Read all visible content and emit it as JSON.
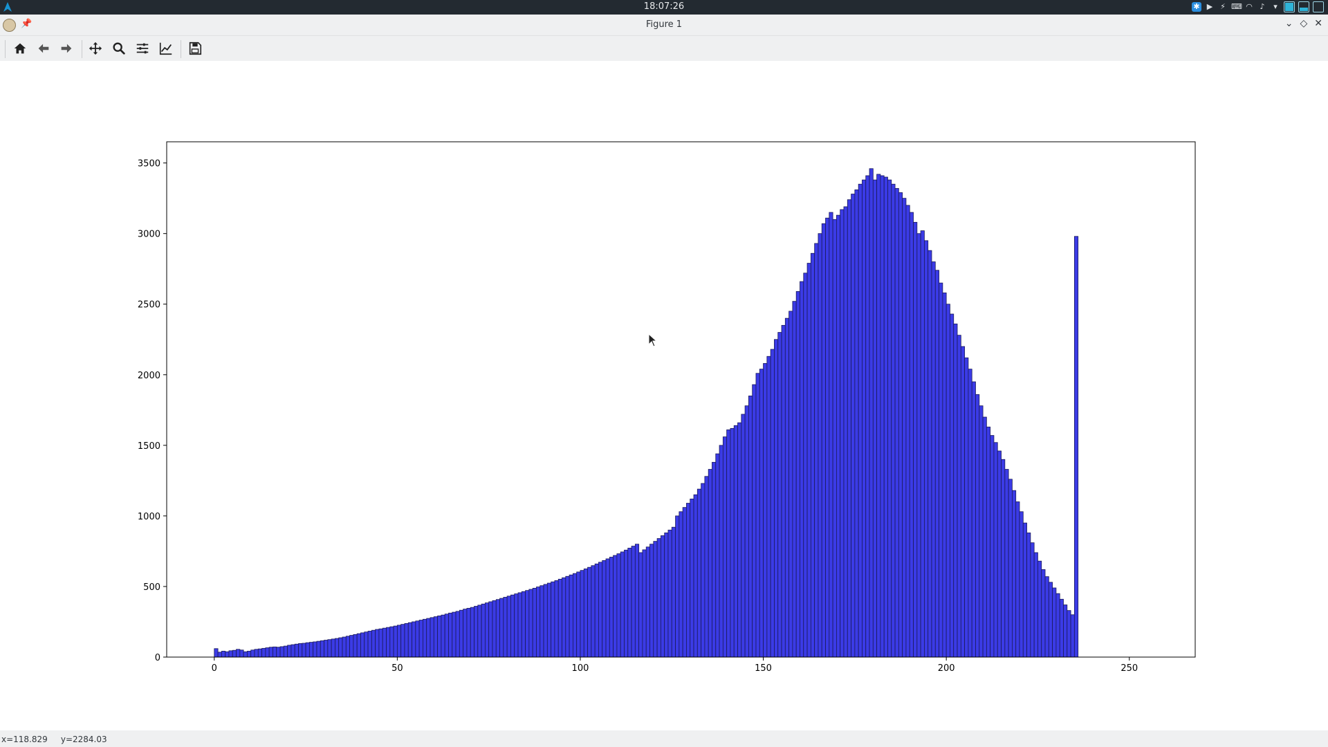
{
  "system_panel": {
    "clock": "18:07:26",
    "tray_icons": [
      "bluetooth-icon",
      "media-play-icon",
      "kde-connect-icon",
      "keyboard-icon",
      "wifi-icon",
      "volume-icon",
      "expand-tray-icon",
      "battery-icon"
    ]
  },
  "window": {
    "title": "Figure 1",
    "controls": [
      "minimize-icon",
      "maximize-icon",
      "close-icon"
    ]
  },
  "toolbar": {
    "buttons": [
      "home-icon",
      "back-icon",
      "forward-icon",
      "pan-icon",
      "zoom-icon",
      "configure-subplots-icon",
      "edit-axis-icon",
      "save-icon"
    ]
  },
  "status": {
    "coordinates": "x=118.829     y=2284.03"
  },
  "colors": {
    "bar_fill": "#3b3be6",
    "bar_edge": "#1a1a5a",
    "panel_bg": "#232a31",
    "chrome_bg": "#eff0f1"
  },
  "chart_data": {
    "type": "bar",
    "title": "",
    "xlabel": "",
    "ylabel": "",
    "xlim": [
      -13,
      268
    ],
    "ylim": [
      0,
      3650
    ],
    "xticks": [
      0,
      50,
      100,
      150,
      200,
      250
    ],
    "yticks": [
      0,
      500,
      1000,
      1500,
      2000,
      2500,
      3000,
      3500
    ],
    "grid": false,
    "bin_start": 0,
    "bin_width": 1,
    "values": [
      60,
      35,
      42,
      38,
      45,
      48,
      55,
      50,
      38,
      42,
      50,
      55,
      58,
      62,
      66,
      70,
      72,
      70,
      74,
      78,
      84,
      88,
      92,
      96,
      98,
      102,
      105,
      108,
      112,
      116,
      120,
      124,
      128,
      132,
      137,
      142,
      148,
      154,
      160,
      166,
      172,
      178,
      184,
      190,
      196,
      200,
      205,
      210,
      215,
      220,
      226,
      232,
      238,
      244,
      250,
      256,
      262,
      268,
      274,
      280,
      286,
      292,
      298,
      305,
      312,
      318,
      324,
      332,
      340,
      346,
      352,
      360,
      368,
      376,
      384,
      392,
      400,
      408,
      416,
      424,
      432,
      440,
      448,
      456,
      464,
      472,
      480,
      488,
      497,
      506,
      515,
      524,
      533,
      542,
      552,
      562,
      572,
      582,
      592,
      603,
      614,
      625,
      636,
      648,
      660,
      672,
      684,
      696,
      708,
      720,
      732,
      745,
      758,
      772,
      786,
      800,
      740,
      760,
      780,
      800,
      820,
      840,
      860,
      880,
      900,
      920,
      1000,
      1030,
      1060,
      1090,
      1120,
      1150,
      1190,
      1230,
      1280,
      1330,
      1380,
      1440,
      1500,
      1560,
      1610,
      1620,
      1640,
      1660,
      1720,
      1780,
      1850,
      1930,
      2010,
      2040,
      2080,
      2130,
      2180,
      2250,
      2300,
      2350,
      2400,
      2450,
      2520,
      2590,
      2660,
      2720,
      2790,
      2860,
      2930,
      3000,
      3070,
      3110,
      3150,
      3100,
      3130,
      3170,
      3190,
      3240,
      3280,
      3310,
      3350,
      3380,
      3410,
      3460,
      3380,
      3420,
      3410,
      3400,
      3380,
      3350,
      3320,
      3290,
      3250,
      3200,
      3150,
      3080,
      3000,
      3020,
      2950,
      2880,
      2800,
      2740,
      2650,
      2580,
      2500,
      2430,
      2360,
      2280,
      2200,
      2120,
      2040,
      1950,
      1860,
      1780,
      1700,
      1630,
      1570,
      1520,
      1460,
      1400,
      1330,
      1260,
      1180,
      1100,
      1030,
      950,
      880,
      810,
      740,
      680,
      620,
      570,
      530,
      490,
      450,
      410,
      370,
      330,
      300,
      2980
    ]
  }
}
